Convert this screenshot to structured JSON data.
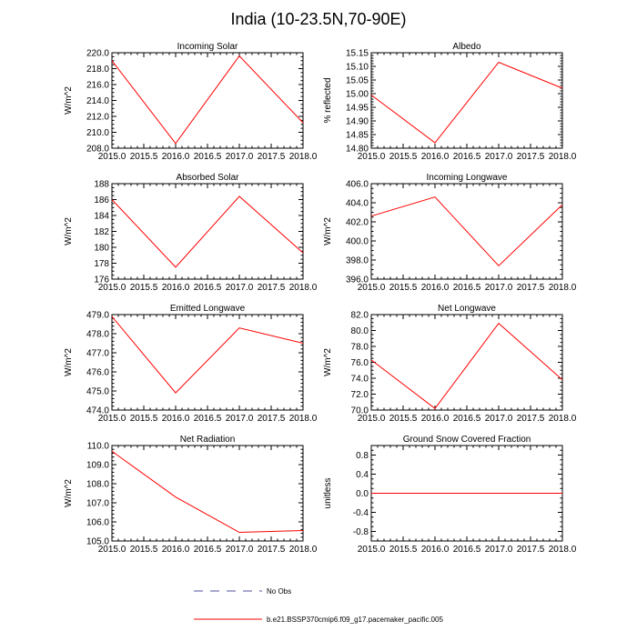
{
  "page_title": "India (10-23.5N,70-90E)",
  "legend": {
    "no_obs_label": "No Obs",
    "no_obs_color": "#5050a0",
    "model_label": "b.e21.BSSP370cmip6.f09_g17.pacemaker_pacific.005",
    "model_color": "#ff0000"
  },
  "chart_data": [
    {
      "type": "line",
      "title": "Incoming Solar",
      "xlabel": "",
      "ylabel": "W/m^2",
      "x": [
        2015.0,
        2016.0,
        2017.0,
        2018.0
      ],
      "series": [
        {
          "name": "b.e21.BSSP370cmip6.f09_g17.pacemaker_pacific.005",
          "values": [
            219.0,
            208.6,
            219.6,
            211.2
          ]
        }
      ],
      "xlim": [
        2015.0,
        2018.0
      ],
      "ylim": [
        208.0,
        220.0
      ],
      "xticks": [
        2015.0,
        2015.5,
        2016.0,
        2016.5,
        2017.0,
        2017.5,
        2018.0
      ],
      "xtick_labels": [
        "2015.0",
        "2015.5",
        "2016.0",
        "2016.5",
        "2017.0",
        "2017.5",
        "2018.0"
      ],
      "yticks": [
        208.0,
        210.0,
        212.0,
        214.0,
        216.0,
        218.0,
        220.0
      ],
      "ytick_labels": [
        "208.0",
        "210.0",
        "212.0",
        "214.0",
        "216.0",
        "218.0",
        "220.0"
      ],
      "yminor": 0.5
    },
    {
      "type": "line",
      "title": "Albedo",
      "xlabel": "",
      "ylabel": "% reflected",
      "x": [
        2015.0,
        2016.0,
        2017.0,
        2018.0
      ],
      "series": [
        {
          "name": "b.e21.BSSP370cmip6.f09_g17.pacemaker_pacific.005",
          "values": [
            14.995,
            14.82,
            15.115,
            15.02
          ]
        }
      ],
      "xlim": [
        2015.0,
        2018.0
      ],
      "ylim": [
        14.8,
        15.15
      ],
      "xticks": [
        2015.0,
        2015.5,
        2016.0,
        2016.5,
        2017.0,
        2017.5,
        2018.0
      ],
      "xtick_labels": [
        "2015.0",
        "2015.5",
        "2016.0",
        "2016.5",
        "2017.0",
        "2017.5",
        "2018.0"
      ],
      "yticks": [
        14.8,
        14.85,
        14.9,
        14.95,
        15.0,
        15.05,
        15.1,
        15.15
      ],
      "ytick_labels": [
        "14.80",
        "14.85",
        "14.90",
        "14.95",
        "15.00",
        "15.05",
        "15.10",
        "15.15"
      ],
      "yminor": 0.01
    },
    {
      "type": "line",
      "title": "Absorbed Solar",
      "xlabel": "",
      "ylabel": "W/m^2",
      "x": [
        2015.0,
        2016.0,
        2017.0,
        2018.0
      ],
      "series": [
        {
          "name": "b.e21.BSSP370cmip6.f09_g17.pacemaker_pacific.005",
          "values": [
            186.0,
            177.5,
            186.4,
            179.3
          ]
        }
      ],
      "xlim": [
        2015.0,
        2018.0
      ],
      "ylim": [
        176.0,
        188.0
      ],
      "xticks": [
        2015.0,
        2015.5,
        2016.0,
        2016.5,
        2017.0,
        2017.5,
        2018.0
      ],
      "xtick_labels": [
        "2015.0",
        "2015.5",
        "2016.0",
        "2016.5",
        "2017.0",
        "2017.5",
        "2018.0"
      ],
      "yticks": [
        176,
        178,
        180,
        182,
        184,
        186,
        188
      ],
      "ytick_labels": [
        "176",
        "178",
        "180",
        "182",
        "184",
        "186",
        "188"
      ],
      "yminor": 0.5
    },
    {
      "type": "line",
      "title": "Incoming Longwave",
      "xlabel": "",
      "ylabel": "W/m^2",
      "x": [
        2015.0,
        2016.0,
        2017.0,
        2018.0
      ],
      "series": [
        {
          "name": "b.e21.BSSP370cmip6.f09_g17.pacemaker_pacific.005",
          "values": [
            402.6,
            404.6,
            397.4,
            403.8
          ]
        }
      ],
      "xlim": [
        2015.0,
        2018.0
      ],
      "ylim": [
        396.0,
        406.0
      ],
      "xticks": [
        2015.0,
        2015.5,
        2016.0,
        2016.5,
        2017.0,
        2017.5,
        2018.0
      ],
      "xtick_labels": [
        "2015.0",
        "2015.5",
        "2016.0",
        "2016.5",
        "2017.0",
        "2017.5",
        "2018.0"
      ],
      "yticks": [
        396.0,
        398.0,
        400.0,
        402.0,
        404.0,
        406.0
      ],
      "ytick_labels": [
        "396.0",
        "398.0",
        "400.0",
        "402.0",
        "404.0",
        "406.0"
      ],
      "yminor": 0.5
    },
    {
      "type": "line",
      "title": "Emitted Longwave",
      "xlabel": "",
      "ylabel": "W/m^2",
      "x": [
        2015.0,
        2016.0,
        2017.0,
        2018.0
      ],
      "series": [
        {
          "name": "b.e21.BSSP370cmip6.f09_g17.pacemaker_pacific.005",
          "values": [
            478.9,
            474.9,
            478.3,
            477.5
          ]
        }
      ],
      "xlim": [
        2015.0,
        2018.0
      ],
      "ylim": [
        474.0,
        479.0
      ],
      "xticks": [
        2015.0,
        2015.5,
        2016.0,
        2016.5,
        2017.0,
        2017.5,
        2018.0
      ],
      "xtick_labels": [
        "2015.0",
        "2015.5",
        "2016.0",
        "2016.5",
        "2017.0",
        "2017.5",
        "2018.0"
      ],
      "yticks": [
        474.0,
        475.0,
        476.0,
        477.0,
        478.0,
        479.0
      ],
      "ytick_labels": [
        "474.0",
        "475.0",
        "476.0",
        "477.0",
        "478.0",
        "479.0"
      ],
      "yminor": 0.2
    },
    {
      "type": "line",
      "title": "Net Longwave",
      "xlabel": "",
      "ylabel": "W/m^2",
      "x": [
        2015.0,
        2016.0,
        2017.0,
        2018.0
      ],
      "series": [
        {
          "name": "b.e21.BSSP370cmip6.f09_g17.pacemaker_pacific.005",
          "values": [
            76.3,
            70.2,
            80.9,
            73.8
          ]
        }
      ],
      "xlim": [
        2015.0,
        2018.0
      ],
      "ylim": [
        70.0,
        82.0
      ],
      "xticks": [
        2015.0,
        2015.5,
        2016.0,
        2016.5,
        2017.0,
        2017.5,
        2018.0
      ],
      "xtick_labels": [
        "2015.0",
        "2015.5",
        "2016.0",
        "2016.5",
        "2017.0",
        "2017.5",
        "2018.0"
      ],
      "yticks": [
        70.0,
        72.0,
        74.0,
        76.0,
        78.0,
        80.0,
        82.0
      ],
      "ytick_labels": [
        "70.0",
        "72.0",
        "74.0",
        "76.0",
        "78.0",
        "80.0",
        "82.0"
      ],
      "yminor": 0.5
    },
    {
      "type": "line",
      "title": "Net Radiation",
      "xlabel": "",
      "ylabel": "W/m^2",
      "x": [
        2015.0,
        2016.0,
        2017.0,
        2018.0
      ],
      "series": [
        {
          "name": "b.e21.BSSP370cmip6.f09_g17.pacemaker_pacific.005",
          "values": [
            109.7,
            107.3,
            105.45,
            105.55
          ]
        }
      ],
      "xlim": [
        2015.0,
        2018.0
      ],
      "ylim": [
        105.0,
        110.0
      ],
      "xticks": [
        2015.0,
        2015.5,
        2016.0,
        2016.5,
        2017.0,
        2017.5,
        2018.0
      ],
      "xtick_labels": [
        "2015.0",
        "2015.5",
        "2016.0",
        "2016.5",
        "2017.0",
        "2017.5",
        "2018.0"
      ],
      "yticks": [
        105.0,
        106.0,
        107.0,
        108.0,
        109.0,
        110.0
      ],
      "ytick_labels": [
        "105.0",
        "106.0",
        "107.0",
        "108.0",
        "109.0",
        "110.0"
      ],
      "yminor": 0.2
    },
    {
      "type": "line",
      "title": "Ground Snow Covered Fraction",
      "xlabel": "",
      "ylabel": "unitless",
      "x": [
        2015.0,
        2016.0,
        2017.0,
        2018.0
      ],
      "series": [
        {
          "name": "b.e21.BSSP370cmip6.f09_g17.pacemaker_pacific.005",
          "values": [
            0.0,
            0.0,
            0.0,
            0.0
          ]
        }
      ],
      "xlim": [
        2015.0,
        2018.0
      ],
      "ylim": [
        -1.0,
        1.0
      ],
      "xticks": [
        2015.0,
        2015.5,
        2016.0,
        2016.5,
        2017.0,
        2017.5,
        2018.0
      ],
      "xtick_labels": [
        "2015.0",
        "2015.5",
        "2016.0",
        "2016.5",
        "2017.0",
        "2017.5",
        "2018.0"
      ],
      "yticks": [
        -0.8,
        -0.4,
        0.0,
        0.4,
        0.8
      ],
      "ytick_labels": [
        "-0.8",
        "-0.4",
        "0.0",
        "0.4",
        "0.8"
      ],
      "yminor": 0.1
    }
  ]
}
